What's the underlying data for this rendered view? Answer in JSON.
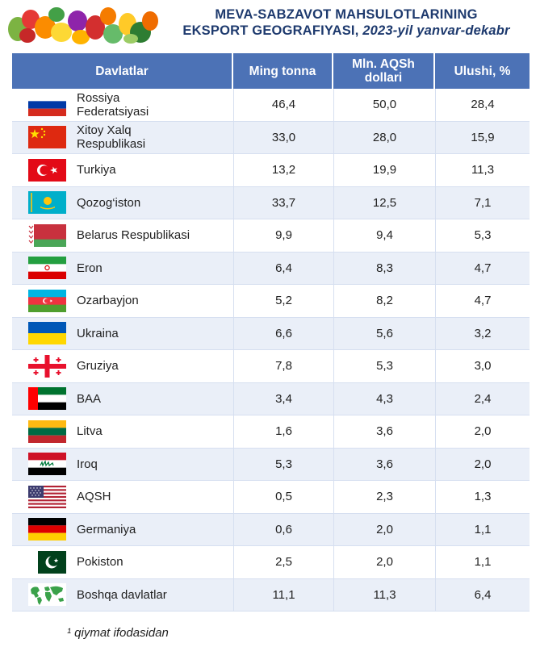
{
  "title": {
    "line1": "MEVA-SABZAVOT MAHSULOTLARINING",
    "line2_main": "EKSPORT GEOGRAFIYASI,",
    "line2_period": "2023-yil yanvar-dekabr"
  },
  "table": {
    "headers": {
      "country": "Davlatlar",
      "tonnes": "Ming tonna",
      "value": "Mln. AQSh dollari",
      "share": "Ulushi, %"
    },
    "rows": [
      {
        "flag": "russia-flag",
        "name": "Rossiya Federatsiyasi",
        "tonnes": "46,4",
        "value": "50,0",
        "share": "28,4"
      },
      {
        "flag": "china-flag",
        "name": "Xitoy Xalq Respublikasi",
        "tonnes": "33,0",
        "value": "28,0",
        "share": "15,9"
      },
      {
        "flag": "turkey-flag",
        "name": "Turkiya",
        "tonnes": "13,2",
        "value": "19,9",
        "share": "11,3"
      },
      {
        "flag": "kazakhstan-flag",
        "name": "Qozog‘iston",
        "tonnes": "33,7",
        "value": "12,5",
        "share": "7,1"
      },
      {
        "flag": "belarus-flag",
        "name": "Belarus Respublikasi",
        "tonnes": "9,9",
        "value": "9,4",
        "share": "5,3"
      },
      {
        "flag": "iran-flag",
        "name": "Eron",
        "tonnes": "6,4",
        "value": "8,3",
        "share": "4,7"
      },
      {
        "flag": "azerbaijan-flag",
        "name": "Ozarbayjon",
        "tonnes": "5,2",
        "value": "8,2",
        "share": "4,7"
      },
      {
        "flag": "ukraine-flag",
        "name": "Ukraina",
        "tonnes": "6,6",
        "value": "5,6",
        "share": "3,2"
      },
      {
        "flag": "georgia-flag",
        "name": "Gruziya",
        "tonnes": "7,8",
        "value": "5,3",
        "share": "3,0"
      },
      {
        "flag": "uae-flag",
        "name": "BAA",
        "tonnes": "3,4",
        "value": "4,3",
        "share": "2,4"
      },
      {
        "flag": "lithuania-flag",
        "name": "Litva",
        "tonnes": "1,6",
        "value": "3,6",
        "share": "2,0"
      },
      {
        "flag": "iraq-flag",
        "name": "Iroq",
        "tonnes": "5,3",
        "value": "3,6",
        "share": "2,0"
      },
      {
        "flag": "usa-flag",
        "name": "AQSH",
        "tonnes": "0,5",
        "value": "2,3",
        "share": "1,3"
      },
      {
        "flag": "germany-flag",
        "name": "Germaniya",
        "tonnes": "0,6",
        "value": "2,0",
        "share": "1,1"
      },
      {
        "flag": "pakistan-flag",
        "name": "Pokiston",
        "tonnes": "2,5",
        "value": "2,0",
        "share": "1,1"
      },
      {
        "flag": "world-map-icon",
        "name": "Boshqa davlatlar",
        "tonnes": "11,1",
        "value": "11,3",
        "share": "6,4"
      }
    ]
  },
  "footnote": "¹ qiymat ifodasidan",
  "colors": {
    "header_bg": "#4c72b6",
    "title": "#1e3a6e",
    "row_alt": "#eaeff8"
  }
}
